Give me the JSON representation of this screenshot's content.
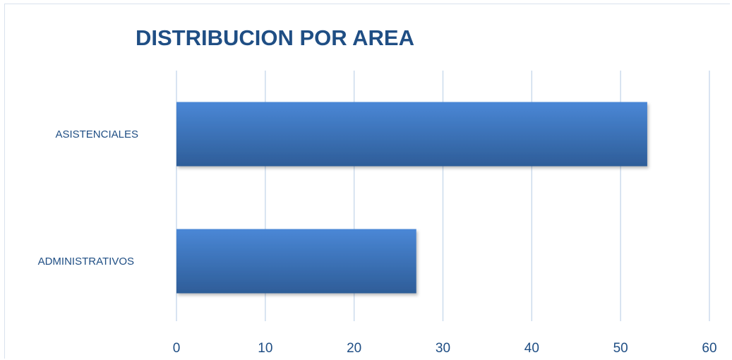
{
  "chart_data": {
    "type": "bar",
    "orientation": "horizontal",
    "title": "DISTRIBUCION POR AREA",
    "categories": [
      "ASISTENCIALES",
      "ADMINISTRATIVOS"
    ],
    "values": [
      53,
      27
    ],
    "xlim": [
      0,
      60
    ],
    "xticks": [
      0,
      10,
      20,
      30,
      40,
      50,
      60
    ],
    "grid": true,
    "legend": "none",
    "colors": {
      "bar_top": "#4a87d6",
      "bar_bottom": "#2e5d98",
      "text": "#1f4e84",
      "grid": "#c9d9ec"
    }
  }
}
